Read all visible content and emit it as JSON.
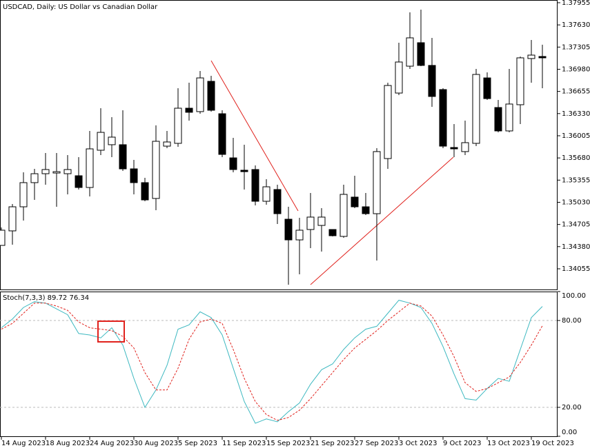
{
  "chart_data": [
    {
      "type": "candlestick",
      "title": "USDCAD, Daily:  US Dollar vs Canadian Dollar",
      "categories": [
        "14 Aug 2023",
        null,
        null,
        null,
        "18 Aug 2023",
        null,
        null,
        null,
        "24 Aug 2023",
        null,
        null,
        null,
        "30 Aug 2023",
        null,
        null,
        null,
        "5 Sep 2023",
        null,
        null,
        null,
        "11 Sep 2023",
        null,
        null,
        null,
        "15 Sep 2023",
        null,
        null,
        null,
        "21 Sep 2023",
        null,
        null,
        null,
        "27 Sep 2023",
        null,
        null,
        null,
        "3 Oct 2023",
        null,
        null,
        null,
        "9 Oct 2023",
        null,
        null,
        null,
        "13 Oct 2023",
        null,
        null,
        null,
        "19 Oct 2023",
        null
      ],
      "open": [
        1.34398,
        1.34611,
        1.34964,
        1.35318,
        1.35449,
        1.35459,
        1.35449,
        1.35419,
        1.35247,
        1.35793,
        1.35874,
        1.35874,
        1.3552,
        1.35318,
        1.35086,
        1.35853,
        1.35894,
        1.36409,
        1.36359,
        1.36803,
        1.36328,
        1.35681,
        1.355,
        1.3551,
        1.35045,
        1.35217,
        1.34782,
        1.34479,
        1.34631,
        1.34691,
        1.34631,
        1.3453,
        1.35106,
        1.34964,
        1.34863,
        1.35671,
        1.36631,
        1.37025,
        1.37369,
        1.37036,
        1.36682,
        1.35833,
        1.35773,
        1.35894,
        1.36853,
        1.36419,
        1.36076,
        1.3646,
        1.37137,
        1.37167
      ],
      "high": [
        1.34661,
        1.35005,
        1.35469,
        1.3552,
        1.35752,
        1.35752,
        1.35722,
        1.35692,
        1.36076,
        1.36409,
        1.36278,
        1.36379,
        1.35651,
        1.35389,
        1.36157,
        1.36076,
        1.36702,
        1.36783,
        1.36955,
        1.36884,
        1.36379,
        1.35975,
        1.35874,
        1.3557,
        1.35368,
        1.35288,
        1.34964,
        1.34803,
        1.35166,
        1.34944,
        1.34631,
        1.35288,
        1.35419,
        1.35166,
        1.35823,
        1.36783,
        1.37369,
        1.37814,
        1.37854,
        1.3744,
        1.36702,
        1.36177,
        1.36227,
        1.36985,
        1.36934,
        1.3653,
        1.36985,
        1.37167,
        1.37409,
        1.37339
      ],
      "low": [
        1.34398,
        1.34409,
        1.34762,
        1.35065,
        1.35288,
        1.34964,
        1.35146,
        1.35217,
        1.35116,
        1.35722,
        1.35692,
        1.3549,
        1.35146,
        1.35045,
        1.34914,
        1.35823,
        1.35843,
        1.36227,
        1.36328,
        1.36359,
        1.35692,
        1.35469,
        1.35217,
        1.34985,
        1.34995,
        1.34712,
        1.33822,
        1.33974,
        1.34358,
        1.34307,
        1.3453,
        1.3451,
        1.34944,
        1.34843,
        1.34176,
        1.3552,
        1.36601,
        1.36985,
        1.37025,
        1.36429,
        1.35823,
        1.35692,
        1.35722,
        1.35853,
        1.3653,
        1.36055,
        1.36055,
        1.36177,
        1.36783,
        1.36702
      ],
      "close": [
        1.34621,
        1.34964,
        1.35318,
        1.35449,
        1.3551,
        1.35479,
        1.3551,
        1.35247,
        1.35813,
        1.36055,
        1.35985,
        1.3552,
        1.35318,
        1.35065,
        1.35924,
        1.35914,
        1.36409,
        1.36349,
        1.36853,
        1.36379,
        1.35732,
        1.3551,
        1.35479,
        1.35045,
        1.35257,
        1.34863,
        1.34479,
        1.34621,
        1.34813,
        1.34813,
        1.3454,
        1.35146,
        1.34964,
        1.34863,
        1.35773,
        1.36742,
        1.37086,
        1.3744,
        1.37036,
        1.36581,
        1.35853,
        1.35813,
        1.35904,
        1.36904,
        1.3655,
        1.36076,
        1.3647,
        1.37147,
        1.37187,
        1.37147
      ],
      "up_color": "#ffffff",
      "down_color": "#000000",
      "ylim": [
        1.33752,
        1.37995
      ],
      "yticks": [
        1.37955,
        {
          "value": 1.3763,
          "label": "1.37630"
        },
        1.37305,
        {
          "value": 1.3698,
          "label": "1.36980"
        },
        1.36655,
        {
          "value": 1.3633,
          "label": "1.36330"
        },
        1.36005,
        {
          "value": 1.3568,
          "label": "1.35680"
        },
        1.35355,
        {
          "value": 1.3503,
          "label": "1.35030"
        },
        1.34705,
        {
          "value": 1.3438,
          "label": "1.34380"
        },
        1.34055
      ]
    },
    {
      "type": "line",
      "title": "Stoch(7,3,3) 89.72 76.34",
      "series": [
        {
          "color": "#3cb8c0",
          "dashed": false,
          "values": [
            75,
            81,
            89,
            93,
            92,
            88,
            84,
            71,
            70,
            68,
            75,
            63,
            40,
            20,
            32,
            49,
            74,
            77,
            86,
            82,
            70,
            47,
            24,
            9,
            12,
            10,
            17,
            23,
            36,
            46,
            50,
            60,
            68,
            74,
            76,
            85,
            94,
            92,
            89,
            78,
            62,
            43,
            26,
            25,
            33,
            40,
            38,
            60,
            82,
            89.72
          ]
        },
        {
          "color": "#e0201b",
          "dashed": true,
          "values": [
            74,
            78,
            85,
            92,
            92,
            90,
            87,
            79,
            75,
            74,
            73,
            69,
            61,
            44,
            32,
            32,
            47,
            67,
            79,
            81,
            78,
            60,
            40,
            24,
            15,
            11,
            13,
            18,
            26,
            35,
            44,
            53,
            61,
            67,
            73,
            80,
            86,
            92,
            90,
            83,
            70,
            55,
            37,
            31,
            33,
            37,
            41,
            51,
            63,
            76.34
          ]
        }
      ],
      "ylim": [
        0,
        100
      ],
      "yticks": [
        {
          "value": 100,
          "label": "100.00"
        },
        {
          "value": 80,
          "label": "80.00"
        },
        {
          "value": 20,
          "label": "20.00"
        },
        {
          "value": 0,
          "label": "0.00"
        }
      ]
    }
  ]
}
